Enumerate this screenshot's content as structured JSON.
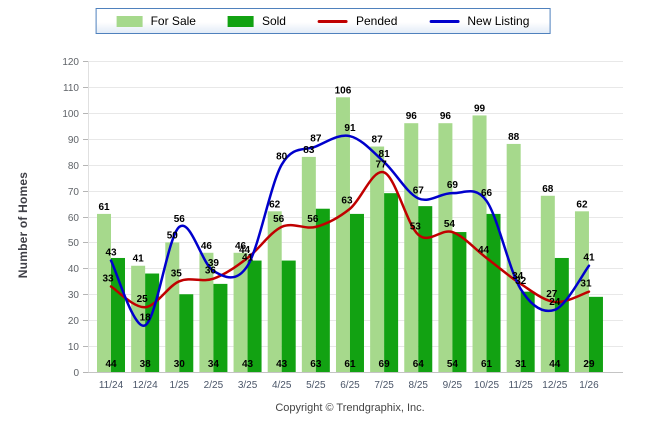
{
  "legend": {
    "items": [
      {
        "label": "For Sale",
        "type": "bar",
        "color": "#a6d98c"
      },
      {
        "label": "Sold",
        "type": "bar",
        "color": "#12a212"
      },
      {
        "label": "Pended",
        "type": "line",
        "color": "#c00000"
      },
      {
        "label": "New Listing",
        "type": "line",
        "color": "#0000cc"
      }
    ]
  },
  "axes": {
    "y_title": "Number of Homes",
    "ylim": [
      0,
      120
    ],
    "ytick_step": 10
  },
  "footer": {
    "copyright": "Copyright © Trendgraphix, Inc."
  },
  "chart_data": {
    "type": "bar",
    "title": "",
    "xlabel": "",
    "ylabel": "Number of Homes",
    "ylim": [
      0,
      120
    ],
    "ytick_step": 10,
    "grid": true,
    "legend_position": "top",
    "categories": [
      "11/24",
      "12/24",
      "1/25",
      "2/25",
      "3/25",
      "4/25",
      "5/25",
      "6/25",
      "7/25",
      "8/25",
      "9/25",
      "10/25",
      "11/25",
      "12/25",
      "1/26"
    ],
    "series": [
      {
        "name": "For Sale",
        "type": "bar",
        "color": "#a6d98c",
        "values": [
          61,
          41,
          50,
          46,
          46,
          62,
          83,
          106,
          87,
          96,
          96,
          99,
          88,
          68,
          62
        ]
      },
      {
        "name": "Sold",
        "type": "bar",
        "color": "#12a212",
        "values": [
          44,
          38,
          30,
          34,
          43,
          43,
          63,
          61,
          69,
          64,
          54,
          61,
          31,
          44,
          29
        ]
      },
      {
        "name": "Pended",
        "type": "line",
        "color": "#c00000",
        "values": [
          33,
          25,
          35,
          36,
          44,
          56,
          56,
          63,
          77,
          53,
          54,
          44,
          34,
          27,
          31
        ]
      },
      {
        "name": "New Listing",
        "type": "line",
        "color": "#0000cc",
        "values": [
          43,
          18,
          56,
          39,
          41,
          80,
          87,
          91,
          81,
          67,
          69,
          66,
          32,
          24,
          41
        ]
      }
    ]
  }
}
